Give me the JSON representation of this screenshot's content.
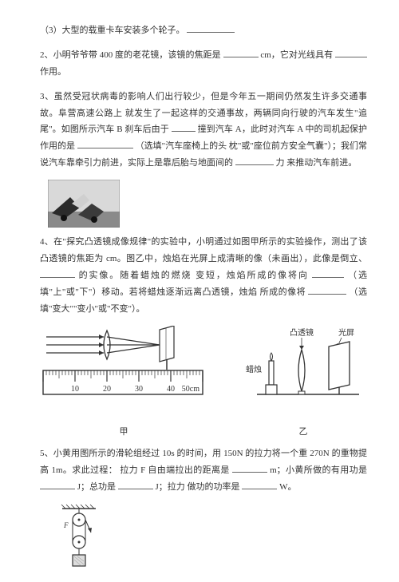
{
  "q1_part3": {
    "text_before": "（3）大型的载重卡车安装多个轮子。",
    "blank_width": 60
  },
  "q2": {
    "prefix": "2、小明爷爷带 400 度的老花镜，该镜的焦距是",
    "mid1": "cm，它对光线具有",
    "suffix": "作用。",
    "blank1_width": 44,
    "blank2_width": 40
  },
  "q3": {
    "l1": "3、虽然受冠状病毒的影响人们出行较少，但是今年五一期间仍然发生许多交通事故。阜营高速公路上",
    "l2a": "就发生了一起这样的交通事故，两辆同向行驶的汽车发生\"追尾\"。如图所示汽车 B 刹车后由于",
    "l3a": "撞到汽车 A，此时对汽车 A 中的司机起保护作用的是",
    "l3b": "（选填\"汽车座椅上的头",
    "l4a": "枕\"或\"座位前方安全气囊\"）；我们常说汽车靠牵引力前进，实际上是靠后胎与地面间的",
    "l4b": "力",
    "l5": "来推动汽车前进。",
    "blank1_width": 30,
    "blank2_width": 70,
    "blank3_width": 48
  },
  "q4": {
    "l1": "4、在\"探究凸透镜成像规律\"的实验中，小明通过如图甲所示的实验操作，测出了该凸透镜的焦距为",
    "l2a": "cm。图乙中，烛焰在光屏上成清晰的像（未画出），此像是倒立、",
    "l2b": "的实像。随着蜡烛的燃烧",
    "l3a": "变短，烛焰所成的像将向",
    "l3b": "（选填\"上\"或\"下\"）移动。若将蜡烛逐渐远离凸透镜，烛焰",
    "l4a": "所成的像将",
    "l4b": "（选填\"变大\"\"变小\"或\"不变\"）。",
    "blank1_width": 44,
    "blank2_width": 40,
    "blank3_width": 48
  },
  "ruler": {
    "ticks": [
      "10",
      "20",
      "30",
      "40",
      "50cm"
    ]
  },
  "diagram_yi": {
    "label_candle": "蜡烛",
    "label_lens": "凸透镜",
    "label_screen": "光屏"
  },
  "captions": {
    "jia": "甲",
    "yi": "乙"
  },
  "q5": {
    "l1": "5、小黄用图所示的滑轮组经过 10s 的时间，用 150N 的拉力将一个重 270N 的重物提高 1m。求此过程：",
    "l2a": "拉力 F 自由端拉出的距离是",
    "l2b": "m；小黄所做的有用功是",
    "l2c": "J；总功是",
    "l2d": "J；拉力",
    "l3a": "做功的功率是",
    "l3b": "W。",
    "blank_width": 44
  },
  "colors": {
    "text": "#333333",
    "line": "#333333",
    "bg": "#ffffff",
    "photo_dark": "#2b2b2b",
    "photo_mid": "#7a7a7a",
    "photo_light": "#d0d0d0"
  }
}
